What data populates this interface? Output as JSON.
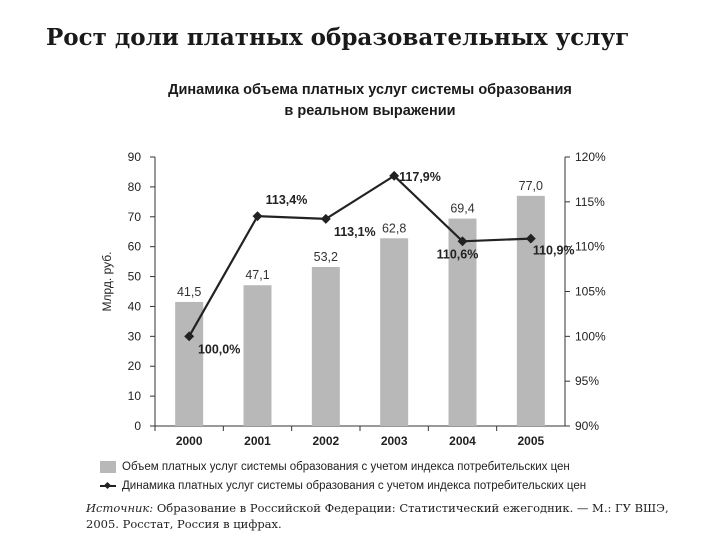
{
  "slide_title": "Рост доли платных образовательных услуг",
  "chart_data": {
    "type": "bar",
    "title_line1": "Динамика объема платных услуг системы образования",
    "title_line2": "в реальном выражении",
    "categories": [
      "2000",
      "2001",
      "2002",
      "2003",
      "2004",
      "2005"
    ],
    "ylabel": "Млрд. руб.",
    "ylim": [
      0,
      90
    ],
    "yticks": [
      "0",
      "10",
      "20",
      "30",
      "40",
      "50",
      "60",
      "70",
      "80",
      "90"
    ],
    "y2lim": [
      90,
      120
    ],
    "y2ticks": [
      "90%",
      "95%",
      "100%",
      "105%",
      "110%",
      "115%",
      "120%"
    ],
    "series": [
      {
        "name": "Объем платных услуг системы образования с учетом индекса потребительских цен",
        "type": "bar",
        "axis": "left",
        "values": [
          41.5,
          47.1,
          53.2,
          62.8,
          69.4,
          77.0
        ],
        "labels": [
          "41,5",
          "47,1",
          "53,2",
          "62,8",
          "69,4",
          "77,0"
        ],
        "color": "#b8b8b8"
      },
      {
        "name": "Динамика платных услуг системы образования с учетом индекса потребительских цен",
        "type": "line",
        "axis": "right",
        "values": [
          100.0,
          113.4,
          113.1,
          117.9,
          110.6,
          110.9
        ],
        "labels": [
          "100,0%",
          "113,4%",
          "113,1%",
          "117,9%",
          "110,6%",
          "110,9%"
        ],
        "color": "#222222"
      }
    ],
    "grid": false,
    "legend": "bottom"
  },
  "source": {
    "label": "Источник:",
    "text": " Образование в Российской Федерации: Статистический ежегодник. — М.: ГУ ВШЭ, 2005. Росстат, Россия в цифрах."
  }
}
